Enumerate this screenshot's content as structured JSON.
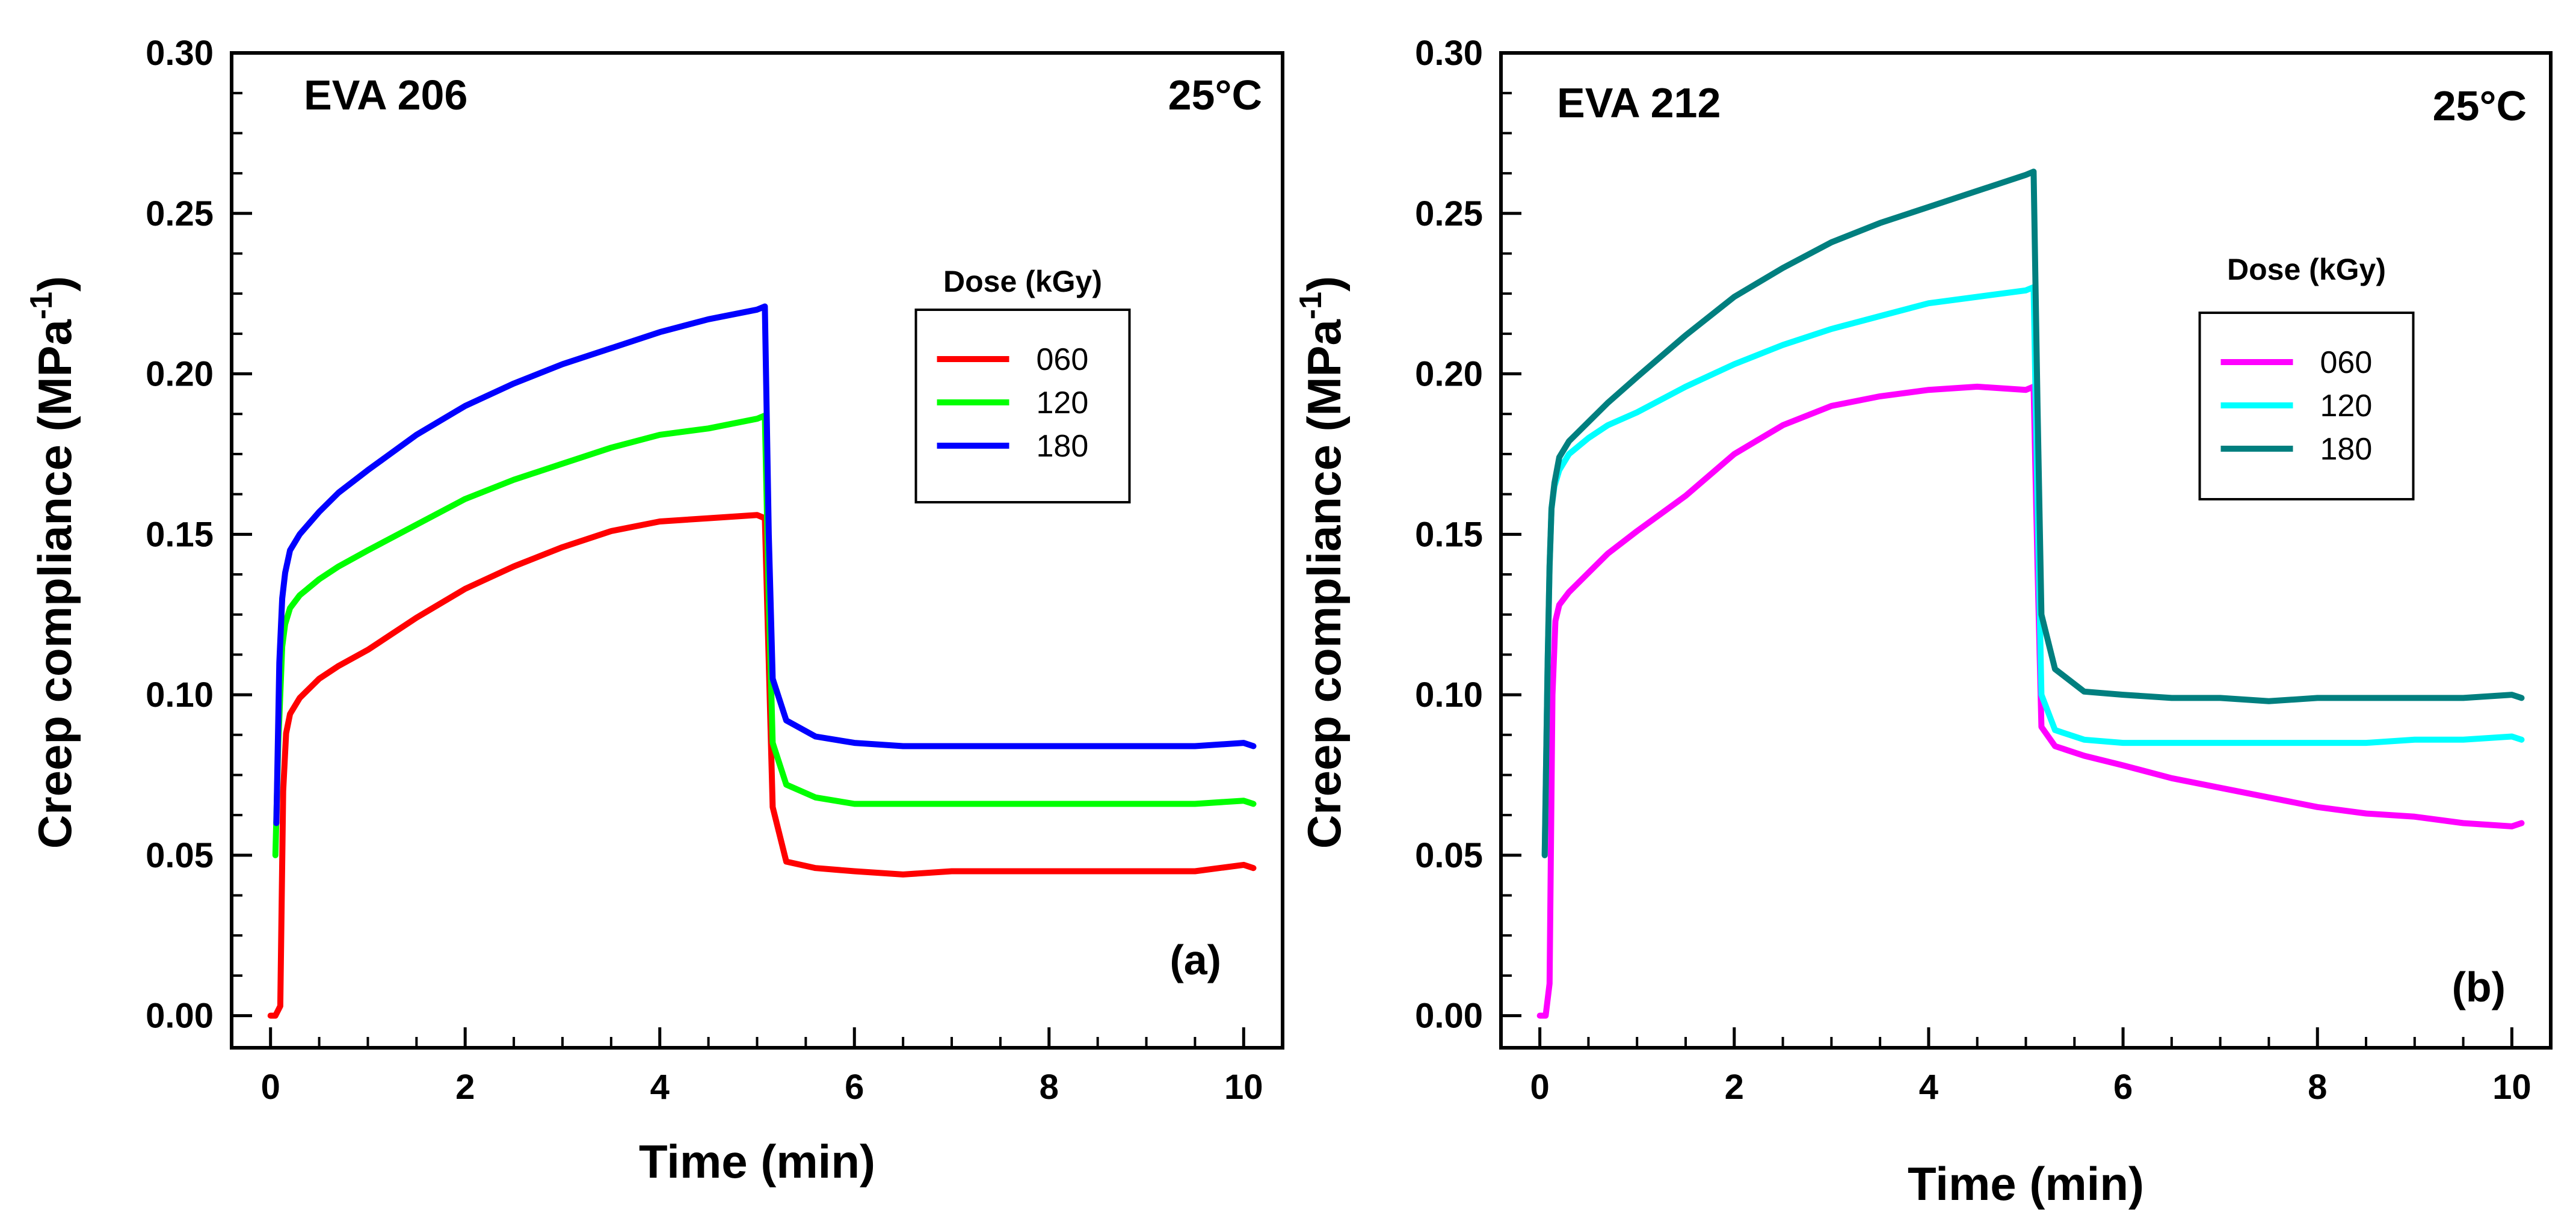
{
  "chart_data": [
    {
      "type": "line",
      "title": "EVA 206",
      "annotation": "25°C",
      "panel_label": "(a)",
      "xlabel": "Time (min)",
      "ylabel": "Creep compliance (MPa",
      "ylabel_sup": "-1",
      "ylabel_close": ")",
      "xlim": [
        -0.4,
        10.4
      ],
      "ylim": [
        -0.01,
        0.3
      ],
      "xticks": [
        0,
        2,
        4,
        6,
        8,
        10
      ],
      "xtick_labels": [
        "0",
        "2",
        "4",
        "6",
        "8",
        "10"
      ],
      "yticks": [
        0.0,
        0.05,
        0.1,
        0.15,
        0.2,
        0.25,
        0.3
      ],
      "ytick_labels": [
        "0.00",
        "0.05",
        "0.10",
        "0.15",
        "0.20",
        "0.25",
        "0.30"
      ],
      "legend_title": "Dose (kGy)",
      "legend_position": "right",
      "grid": false,
      "series": [
        {
          "name": "060",
          "color": "#ff0000",
          "x": [
            0.0,
            0.05,
            0.1,
            0.13,
            0.16,
            0.2,
            0.3,
            0.5,
            0.7,
            1.0,
            1.5,
            2.0,
            2.5,
            3.0,
            3.5,
            4.0,
            4.5,
            5.0,
            5.08,
            5.12,
            5.16,
            5.3,
            5.6,
            6.0,
            6.5,
            7.0,
            7.5,
            8.0,
            8.5,
            9.0,
            9.5,
            10.0,
            10.1
          ],
          "y": [
            0.0,
            0.0,
            0.003,
            0.07,
            0.088,
            0.094,
            0.099,
            0.105,
            0.109,
            0.114,
            0.124,
            0.133,
            0.14,
            0.146,
            0.151,
            0.154,
            0.155,
            0.156,
            0.155,
            0.11,
            0.065,
            0.048,
            0.046,
            0.045,
            0.044,
            0.045,
            0.045,
            0.045,
            0.045,
            0.045,
            0.045,
            0.047,
            0.046
          ]
        },
        {
          "name": "120",
          "color": "#00ff00",
          "x": [
            0.05,
            0.08,
            0.1,
            0.12,
            0.15,
            0.2,
            0.3,
            0.5,
            0.7,
            1.0,
            1.5,
            2.0,
            2.5,
            3.0,
            3.5,
            4.0,
            4.5,
            5.0,
            5.08,
            5.12,
            5.16,
            5.3,
            5.6,
            6.0,
            6.5,
            7.0,
            7.5,
            8.0,
            8.5,
            9.0,
            9.5,
            10.0,
            10.1
          ],
          "y": [
            0.05,
            0.085,
            0.1,
            0.115,
            0.122,
            0.127,
            0.131,
            0.136,
            0.14,
            0.145,
            0.153,
            0.161,
            0.167,
            0.172,
            0.177,
            0.181,
            0.183,
            0.186,
            0.187,
            0.13,
            0.085,
            0.072,
            0.068,
            0.066,
            0.066,
            0.066,
            0.066,
            0.066,
            0.066,
            0.066,
            0.066,
            0.067,
            0.066
          ]
        },
        {
          "name": "180",
          "color": "#0000ff",
          "x": [
            0.06,
            0.09,
            0.12,
            0.15,
            0.2,
            0.3,
            0.5,
            0.7,
            1.0,
            1.5,
            2.0,
            2.5,
            3.0,
            3.5,
            4.0,
            4.5,
            5.0,
            5.08,
            5.12,
            5.16,
            5.3,
            5.6,
            6.0,
            6.5,
            7.0,
            7.5,
            8.0,
            8.5,
            9.0,
            9.5,
            10.0,
            10.1
          ],
          "y": [
            0.06,
            0.11,
            0.13,
            0.138,
            0.145,
            0.15,
            0.157,
            0.163,
            0.17,
            0.181,
            0.19,
            0.197,
            0.203,
            0.208,
            0.213,
            0.217,
            0.22,
            0.221,
            0.15,
            0.105,
            0.092,
            0.087,
            0.085,
            0.084,
            0.084,
            0.084,
            0.084,
            0.084,
            0.084,
            0.084,
            0.085,
            0.084
          ]
        }
      ]
    },
    {
      "type": "line",
      "title": "EVA 212",
      "annotation": "25°C",
      "panel_label": "(b)",
      "xlabel": "Time (min)",
      "ylabel": "Creep compliance (MPa",
      "ylabel_sup": "-1",
      "ylabel_close": ")",
      "xlim": [
        -0.4,
        10.4
      ],
      "ylim": [
        -0.01,
        0.3
      ],
      "xticks": [
        0,
        2,
        4,
        6,
        8,
        10
      ],
      "xtick_labels": [
        "0",
        "2",
        "4",
        "6",
        "8",
        "10"
      ],
      "yticks": [
        0.0,
        0.05,
        0.1,
        0.15,
        0.2,
        0.25,
        0.3
      ],
      "ytick_labels": [
        "0.00",
        "0.05",
        "0.10",
        "0.15",
        "0.20",
        "0.25",
        "0.30"
      ],
      "legend_title": "Dose (kGy)",
      "legend_position": "right",
      "grid": false,
      "series": [
        {
          "name": "060",
          "color": "#ff00ff",
          "x": [
            0.0,
            0.06,
            0.1,
            0.13,
            0.16,
            0.2,
            0.3,
            0.5,
            0.7,
            1.0,
            1.5,
            2.0,
            2.5,
            3.0,
            3.5,
            4.0,
            4.5,
            5.0,
            5.08,
            5.12,
            5.16,
            5.3,
            5.6,
            6.0,
            6.5,
            7.0,
            7.5,
            8.0,
            8.5,
            9.0,
            9.5,
            10.0,
            10.1
          ],
          "y": [
            0.0,
            0.0,
            0.01,
            0.1,
            0.123,
            0.128,
            0.132,
            0.138,
            0.144,
            0.151,
            0.162,
            0.175,
            0.184,
            0.19,
            0.193,
            0.195,
            0.196,
            0.195,
            0.196,
            0.14,
            0.09,
            0.084,
            0.081,
            0.078,
            0.074,
            0.071,
            0.068,
            0.065,
            0.063,
            0.062,
            0.06,
            0.059,
            0.06
          ]
        },
        {
          "name": "120",
          "color": "#00ffff",
          "x": [
            0.05,
            0.08,
            0.1,
            0.12,
            0.15,
            0.2,
            0.3,
            0.5,
            0.7,
            1.0,
            1.5,
            2.0,
            2.5,
            3.0,
            3.5,
            4.0,
            4.5,
            5.0,
            5.08,
            5.12,
            5.16,
            5.3,
            5.6,
            6.0,
            6.5,
            7.0,
            7.5,
            8.0,
            8.5,
            9.0,
            9.5,
            10.0,
            10.1
          ],
          "y": [
            0.05,
            0.11,
            0.14,
            0.158,
            0.165,
            0.17,
            0.175,
            0.18,
            0.184,
            0.188,
            0.196,
            0.203,
            0.209,
            0.214,
            0.218,
            0.222,
            0.224,
            0.226,
            0.227,
            0.16,
            0.1,
            0.089,
            0.086,
            0.085,
            0.085,
            0.085,
            0.085,
            0.085,
            0.085,
            0.086,
            0.086,
            0.087,
            0.086
          ]
        },
        {
          "name": "180",
          "color": "#007f7f",
          "x": [
            0.05,
            0.08,
            0.1,
            0.12,
            0.15,
            0.2,
            0.3,
            0.5,
            0.7,
            1.0,
            1.5,
            2.0,
            2.5,
            3.0,
            3.5,
            4.0,
            4.5,
            5.0,
            5.08,
            5.12,
            5.16,
            5.3,
            5.6,
            6.0,
            6.5,
            7.0,
            7.5,
            8.0,
            8.5,
            9.0,
            9.5,
            10.0,
            10.1
          ],
          "y": [
            0.05,
            0.11,
            0.14,
            0.158,
            0.166,
            0.174,
            0.179,
            0.185,
            0.191,
            0.199,
            0.212,
            0.224,
            0.233,
            0.241,
            0.247,
            0.252,
            0.257,
            0.262,
            0.263,
            0.19,
            0.125,
            0.108,
            0.101,
            0.1,
            0.099,
            0.099,
            0.098,
            0.099,
            0.099,
            0.099,
            0.099,
            0.1,
            0.099
          ]
        }
      ]
    }
  ]
}
